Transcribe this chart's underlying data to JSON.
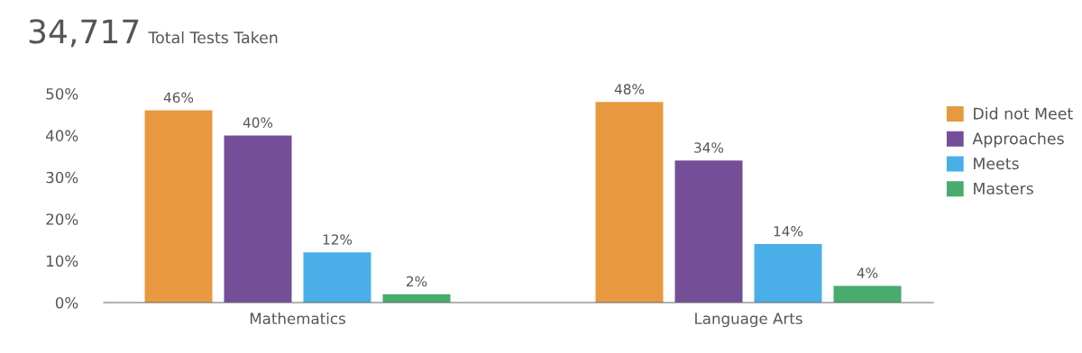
{
  "chart_data": {
    "type": "bar",
    "title": "34,717",
    "subtitle": "Total Tests Taken",
    "categories": [
      "Mathematics",
      "Language Arts"
    ],
    "series": [
      {
        "name": "Did not Meet",
        "color": "#e8993f",
        "values": [
          46,
          48
        ],
        "value_labels": [
          "46%",
          "48%"
        ]
      },
      {
        "name": "Approaches",
        "color": "#744f97",
        "values": [
          40,
          34
        ],
        "value_labels": [
          "40%",
          "34%"
        ]
      },
      {
        "name": "Meets",
        "color": "#4aaee8",
        "values": [
          12,
          14
        ],
        "value_labels": [
          "12%",
          "14%"
        ]
      },
      {
        "name": "Masters",
        "color": "#49ab6c",
        "values": [
          2,
          4
        ],
        "value_labels": [
          "2%",
          "4%"
        ]
      }
    ],
    "ylim": [
      0,
      50
    ],
    "yticks": [
      {
        "value": 0,
        "label": "0%"
      },
      {
        "value": 10,
        "label": "10%"
      },
      {
        "value": 20,
        "label": "20%"
      },
      {
        "value": 30,
        "label": "30%"
      },
      {
        "value": 40,
        "label": "40%"
      },
      {
        "value": 50,
        "label": "50%"
      }
    ],
    "grid": false,
    "legend": "right"
  }
}
